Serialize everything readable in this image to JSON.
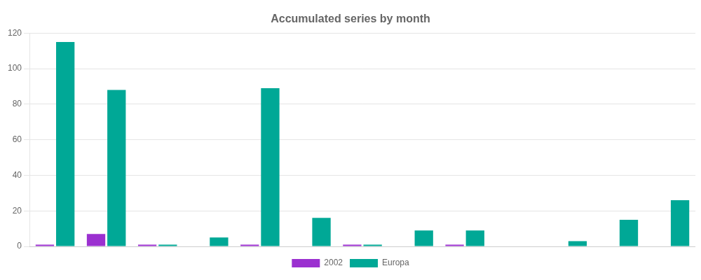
{
  "chart_data": {
    "type": "bar",
    "title": "Accumulated series by month",
    "categories": [
      null,
      null,
      null,
      null,
      null,
      null,
      null,
      null,
      null,
      null,
      null,
      null,
      null
    ],
    "series": [
      {
        "name": "2002",
        "color": "#9b30d0",
        "values": [
          1,
          7,
          1,
          0,
          1,
          0,
          1,
          0,
          1,
          0,
          0,
          0,
          0
        ]
      },
      {
        "name": "Europa",
        "color": "#00a896",
        "values": [
          115,
          88,
          1,
          5,
          89,
          16,
          1,
          9,
          9,
          0,
          3,
          15,
          26
        ]
      }
    ],
    "ylim": [
      0,
      120
    ],
    "yticks": [
      0,
      20,
      40,
      60,
      80,
      100,
      120
    ],
    "grid": true,
    "legend": "bottom",
    "tick_labels": "y"
  }
}
